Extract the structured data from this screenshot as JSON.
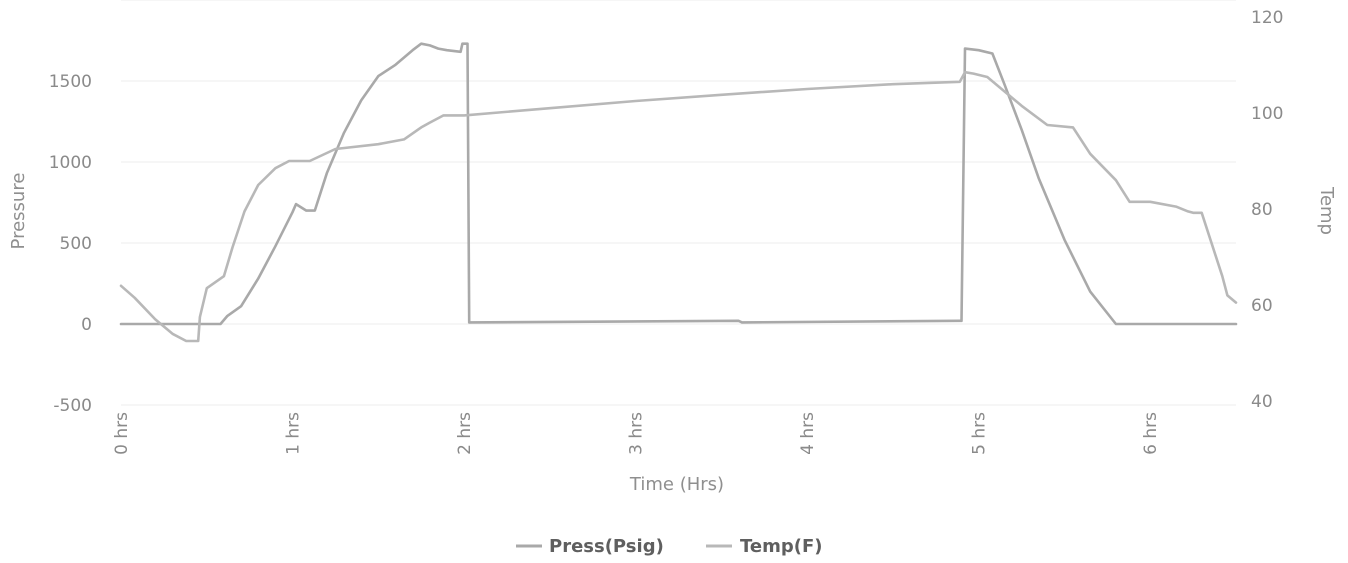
{
  "chart_data": {
    "type": "line",
    "x_axis": {
      "title": "Time (Hrs)",
      "range": [
        0,
        6.5
      ],
      "ticks": [
        0,
        1,
        2,
        3,
        4,
        5,
        6
      ],
      "tick_labels": [
        "0 hrs",
        "1 hrs",
        "2 hrs",
        "3 hrs",
        "4 hrs",
        "5 hrs",
        "6 hrs"
      ]
    },
    "y_axis_left": {
      "title": "Pressure",
      "range": [
        -500,
        1800
      ],
      "ticks": [
        -500,
        0,
        500,
        1000,
        1500
      ],
      "tick_labels": [
        "-500",
        "0",
        "500",
        "1000",
        "1500"
      ]
    },
    "y_axis_right": {
      "title": "Temp",
      "range": [
        40,
        120
      ],
      "ticks": [
        40,
        60,
        80,
        100,
        120
      ],
      "tick_labels": [
        "40",
        "60",
        "80",
        "100",
        "120"
      ]
    },
    "grid": true,
    "legend_position": "bottom-center",
    "series": [
      {
        "name": "Press(Psig)",
        "axis": "left",
        "color": "#a9a9a9",
        "x": [
          0,
          0.58,
          0.62,
          0.7,
          0.8,
          0.9,
          1.0,
          1.02,
          1.08,
          1.13,
          1.2,
          1.3,
          1.4,
          1.5,
          1.6,
          1.7,
          1.75,
          1.8,
          1.85,
          1.9,
          1.98,
          1.99,
          2.01,
          2.02,
          2.03,
          3.6,
          3.62,
          4.89,
          4.9,
          4.92,
          5.0,
          5.08,
          5.15,
          5.25,
          5.35,
          5.5,
          5.65,
          5.8,
          6.5
        ],
        "y": [
          0,
          0,
          50,
          110,
          280,
          480,
          690,
          740,
          700,
          700,
          930,
          1180,
          1380,
          1530,
          1600,
          1690,
          1730,
          1720,
          1700,
          1690,
          1680,
          1730,
          1730,
          1730,
          10,
          20,
          10,
          20,
          20,
          1700,
          1690,
          1670,
          1480,
          1200,
          900,
          520,
          200,
          0,
          0
        ]
      },
      {
        "name": "Temp(F)",
        "axis": "right",
        "color": "#b8b8b8",
        "x": [
          0,
          0.08,
          0.2,
          0.3,
          0.38,
          0.45,
          0.46,
          0.5,
          0.6,
          0.65,
          0.72,
          0.8,
          0.9,
          0.98,
          1.1,
          1.25,
          1.5,
          1.65,
          1.75,
          1.8,
          1.88,
          2.0,
          2.5,
          3.0,
          3.5,
          4.0,
          4.5,
          4.89,
          4.92,
          4.97,
          5.05,
          5.25,
          5.4,
          5.55,
          5.65,
          5.8,
          5.88,
          6.0,
          6.15,
          6.22,
          6.25,
          6.3,
          6.42,
          6.45,
          6.5
        ],
        "y": [
          64,
          61.5,
          57,
          54,
          52.5,
          52.5,
          57.5,
          63.5,
          66,
          72,
          79.5,
          85,
          88.5,
          90,
          90,
          92.5,
          93.5,
          94.5,
          97,
          98,
          99.5,
          99.5,
          101,
          102.5,
          103.8,
          105,
          106,
          106.5,
          108.5,
          108.2,
          107.5,
          101.5,
          97.5,
          97,
          91.5,
          86,
          81.5,
          81.5,
          80.5,
          79.5,
          79.2,
          79.2,
          66,
          62,
          60.5
        ]
      }
    ]
  }
}
